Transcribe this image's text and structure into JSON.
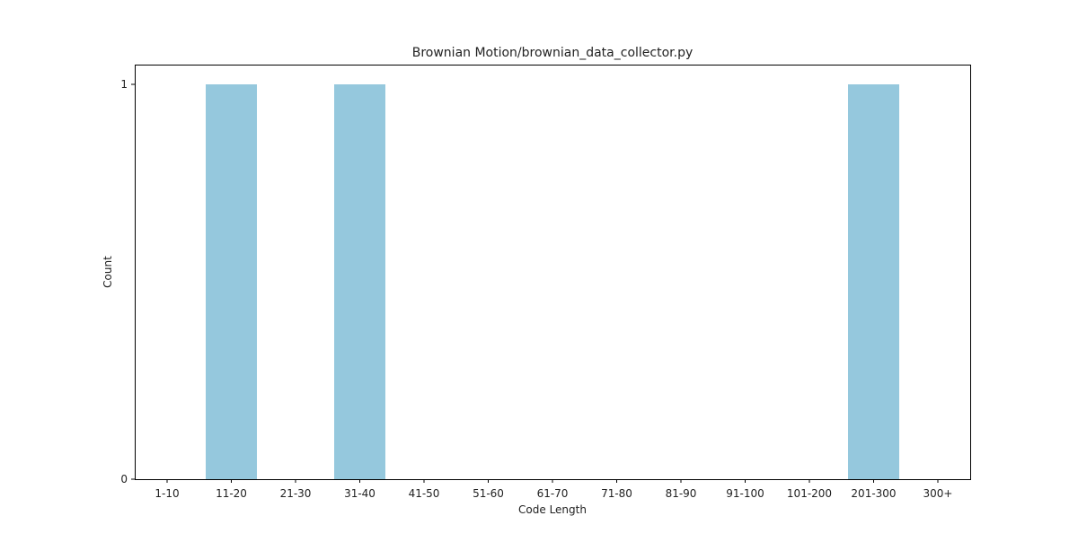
{
  "chart_data": {
    "type": "bar",
    "title": "Brownian Motion/brownian_data_collector.py",
    "xlabel": "Code Length",
    "ylabel": "Count",
    "categories": [
      "1-10",
      "11-20",
      "21-30",
      "31-40",
      "41-50",
      "51-60",
      "61-70",
      "71-80",
      "81-90",
      "91-100",
      "101-200",
      "201-300",
      "300+"
    ],
    "values": [
      0,
      1,
      0,
      1,
      0,
      0,
      0,
      0,
      0,
      0,
      0,
      1,
      0
    ],
    "yticks": [
      0,
      1
    ],
    "ylim": [
      0,
      1.05
    ],
    "grid": false,
    "legend": "none",
    "bar_color": "#95c8dd"
  }
}
